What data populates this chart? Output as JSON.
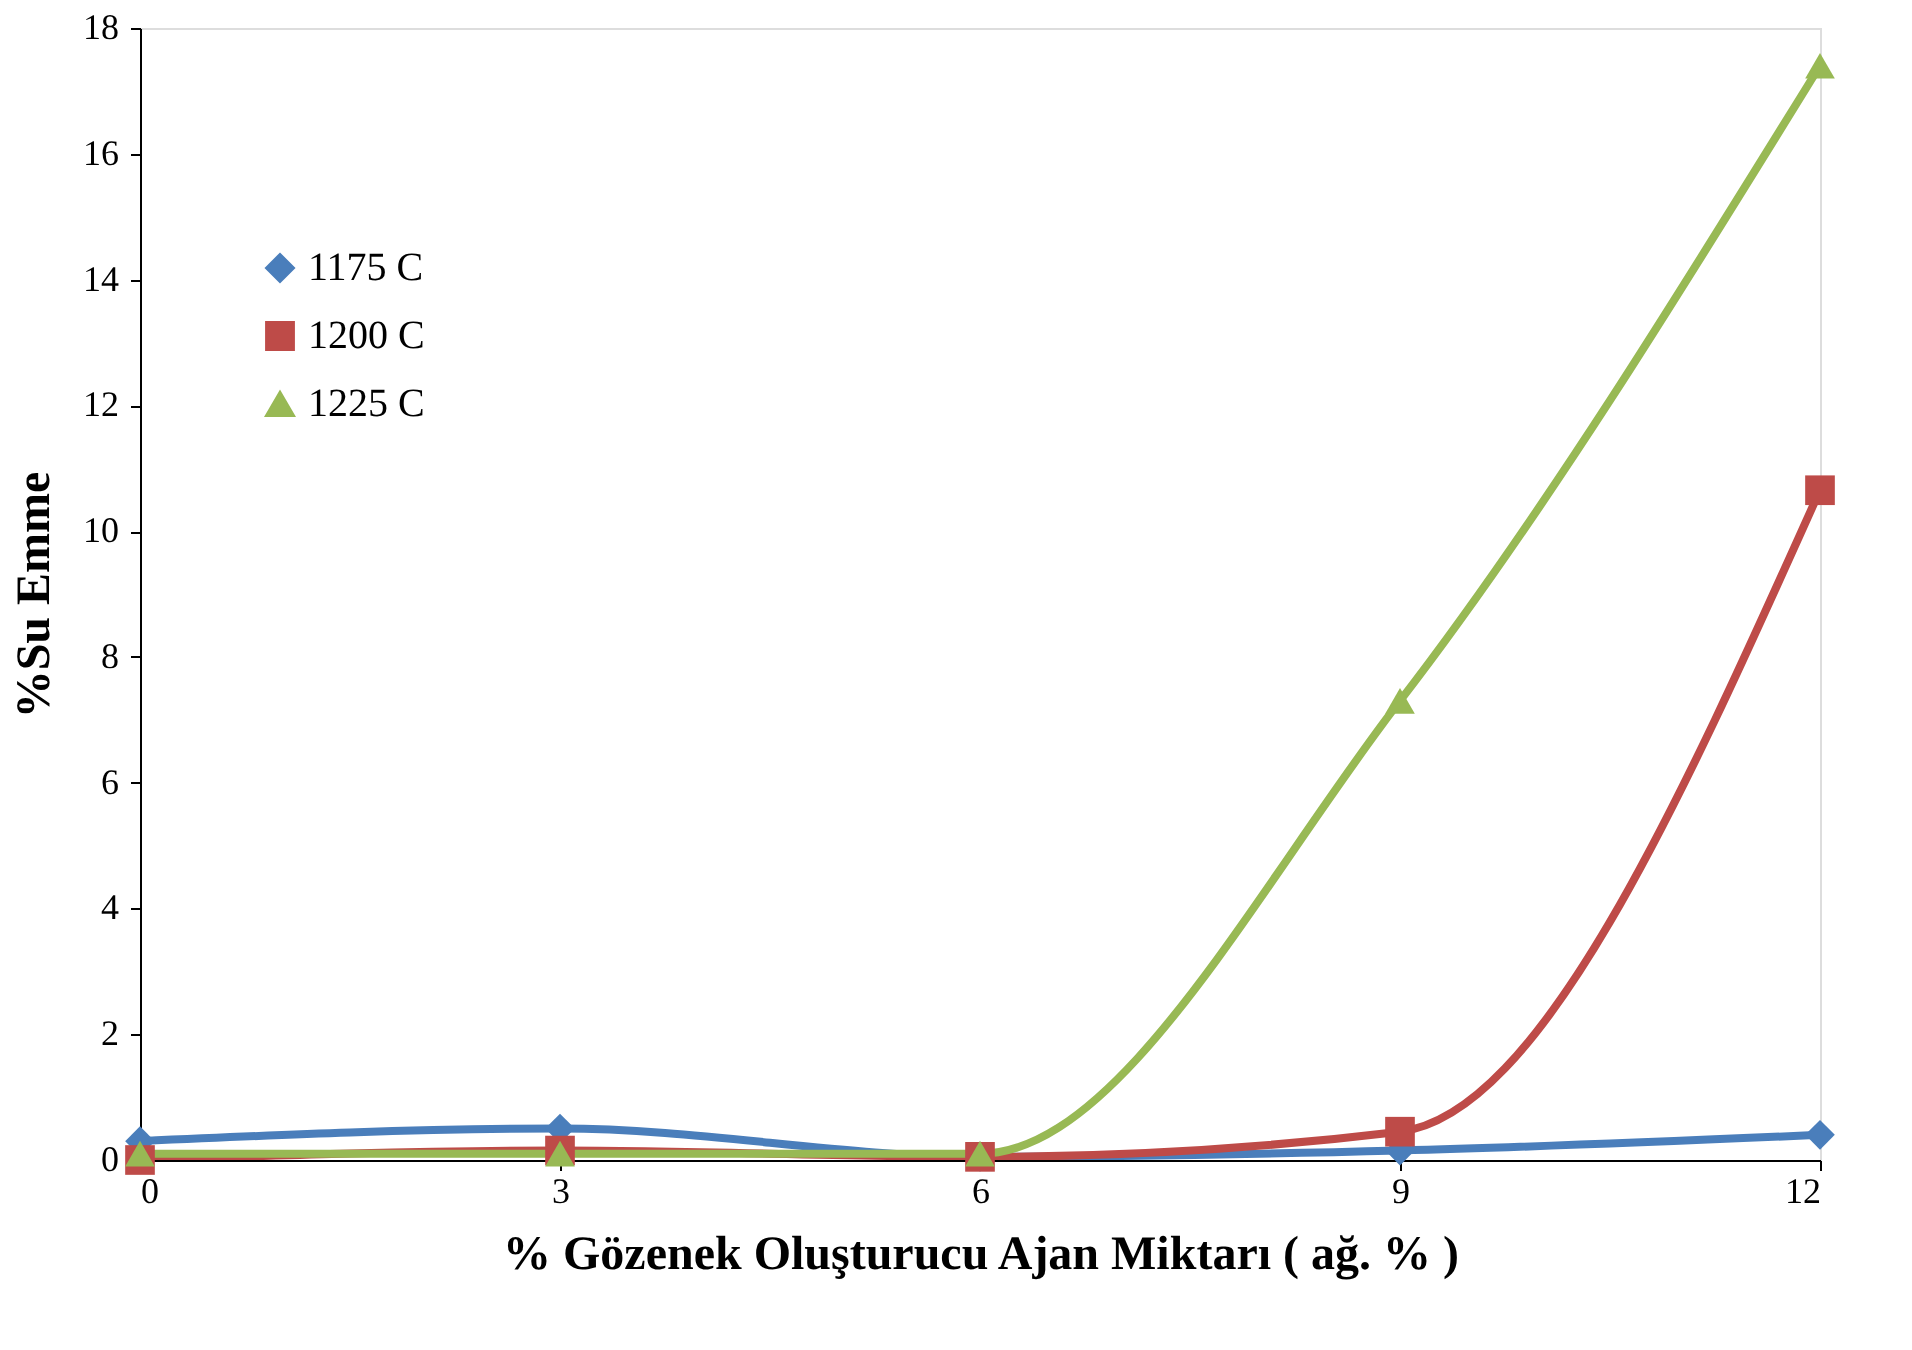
{
  "chart_data": {
    "type": "line",
    "xlabel": "% Gözenek Oluşturucu Ajan Miktarı ( ağ. % )",
    "ylabel": "%Su Emme",
    "x": [
      0,
      3,
      6,
      9,
      12
    ],
    "series": [
      {
        "name": "1175 C",
        "color": "#4a7ebb",
        "marker": "diamond",
        "values": [
          0.3,
          0.5,
          0.05,
          0.15,
          0.4
        ]
      },
      {
        "name": "1200 C",
        "color": "#be4b48",
        "marker": "square",
        "values": [
          0.0,
          0.15,
          0.05,
          0.45,
          10.65
        ]
      },
      {
        "name": "1225 C",
        "color": "#98b954",
        "marker": "triangle",
        "values": [
          0.1,
          0.1,
          0.1,
          7.3,
          17.4
        ]
      }
    ],
    "xlim": [
      0,
      12
    ],
    "xticks": [
      0,
      3,
      6,
      9,
      12
    ],
    "ylim": [
      0,
      18
    ],
    "yticks": [
      0,
      2,
      4,
      6,
      8,
      10,
      12,
      14,
      16,
      18
    ],
    "grid": false,
    "legend": "top left",
    "line_style": "solid"
  }
}
